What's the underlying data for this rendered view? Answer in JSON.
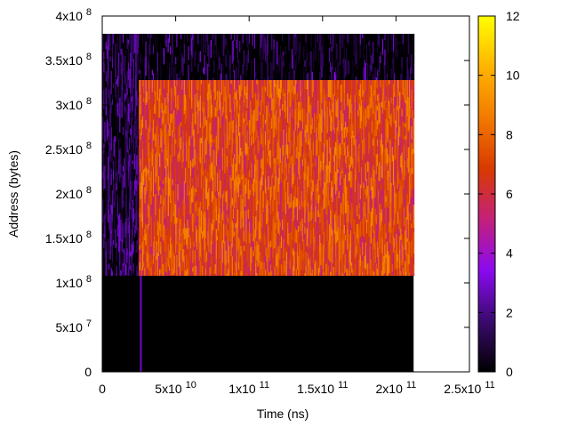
{
  "chart_data": {
    "type": "heatmap",
    "title": "",
    "xlabel": "Time (ns)",
    "ylabel": "Address (bytes)",
    "xlim": [
      0,
      250000000000.0
    ],
    "ylim": [
      0,
      400000000.0
    ],
    "x_ticks": [
      {
        "value": 0,
        "base": "0",
        "exp": ""
      },
      {
        "value": 50000000000.0,
        "base": "5x10",
        "exp": "10"
      },
      {
        "value": 100000000000.0,
        "base": "1x10",
        "exp": "11"
      },
      {
        "value": 150000000000.0,
        "base": "1.5x10",
        "exp": "11"
      },
      {
        "value": 200000000000.0,
        "base": "2x10",
        "exp": "11"
      },
      {
        "value": 250000000000.0,
        "base": "2.5x10",
        "exp": "11"
      }
    ],
    "y_ticks": [
      {
        "value": 0,
        "base": "0",
        "exp": ""
      },
      {
        "value": 50000000.0,
        "base": "5x10",
        "exp": "7"
      },
      {
        "value": 100000000.0,
        "base": "1x10",
        "exp": "8"
      },
      {
        "value": 150000000.0,
        "base": "1.5x10",
        "exp": "8"
      },
      {
        "value": 200000000.0,
        "base": "2x10",
        "exp": "8"
      },
      {
        "value": 250000000.0,
        "base": "2.5x10",
        "exp": "8"
      },
      {
        "value": 300000000.0,
        "base": "3x10",
        "exp": "8"
      },
      {
        "value": 350000000.0,
        "base": "3.5x10",
        "exp": "8"
      },
      {
        "value": 400000000.0,
        "base": "4x10",
        "exp": "8"
      }
    ],
    "colorbar": {
      "range": [
        0,
        12
      ],
      "ticks": [
        "0",
        "2",
        "4",
        "6",
        "8",
        "10",
        "12"
      ],
      "palette": [
        "#000000",
        "#3a0a6e",
        "#8b0af0",
        "#c4207a",
        "#d83a00",
        "#f27a00",
        "#ffb400",
        "#ffff00"
      ]
    },
    "regions": [
      {
        "name": "background",
        "x": [
          0,
          212000000000.0
        ],
        "y": [
          0,
          380000000.0
        ],
        "value_range": [
          0,
          0.5
        ]
      },
      {
        "name": "early-sparse",
        "x": [
          0,
          25000000000.0
        ],
        "y": [
          108000000.0,
          380000000.0
        ],
        "value_range": [
          0,
          3
        ]
      },
      {
        "name": "upper-band",
        "x": [
          25000000000.0,
          212000000000.0
        ],
        "y": [
          328000000.0,
          380000000.0
        ],
        "value_range": [
          0,
          4
        ]
      },
      {
        "name": "main-band",
        "x": [
          25000000000.0,
          212000000000.0
        ],
        "y": [
          108000000.0,
          328000000.0
        ],
        "value_range": [
          5,
          9
        ]
      },
      {
        "name": "vertical-spike",
        "x": [
          25500000000.0,
          26500000000.0
        ],
        "y": [
          0,
          108000000.0
        ],
        "value_range": [
          2,
          3
        ]
      }
    ]
  }
}
